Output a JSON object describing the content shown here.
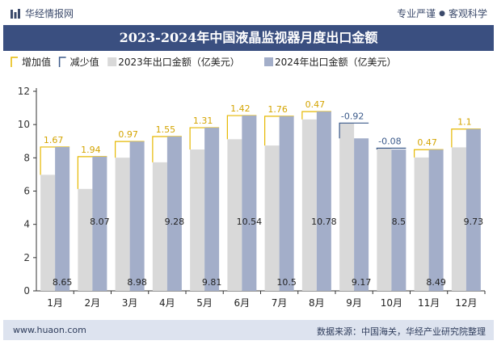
{
  "header": {
    "brand": "华经情报网",
    "tag_quality": "专业严谨",
    "tag_science": "客观科学"
  },
  "footer": {
    "url": "www.huaon.com",
    "source": "数据来源：中国海关，华经产业研究院整理"
  },
  "colors": {
    "title_bg": "#3a4f80",
    "bar_2023": "#d9d9d9",
    "bar_2024": "#a3aec9",
    "increase": "#e6b800",
    "decrease": "#3b5a8a",
    "footer_bg": "#dde3ef"
  },
  "chart_data": {
    "type": "bar",
    "title": "2023-2024年中国液晶监视器月度出口金额",
    "categories": [
      "1月",
      "2月",
      "3月",
      "4月",
      "5月",
      "6月",
      "7月",
      "8月",
      "9月",
      "10月",
      "11月",
      "12月"
    ],
    "series": [
      {
        "name": "2023年出口金额（亿美元）",
        "values": [
          6.98,
          6.13,
          8.01,
          7.73,
          8.5,
          9.12,
          8.74,
          10.31,
          10.09,
          8.58,
          8.02,
          8.63
        ]
      },
      {
        "name": "2024年出口金额（亿美元）",
        "values": [
          8.65,
          8.07,
          8.98,
          9.28,
          9.81,
          10.54,
          10.5,
          10.78,
          9.17,
          8.5,
          8.49,
          9.73
        ]
      }
    ],
    "change_values": [
      "1.67",
      "1.94",
      "0.97",
      "1.55",
      "1.31",
      "1.42",
      "1.76",
      "0.47",
      "-0.92",
      "-0.08",
      "0.47",
      "1.1"
    ],
    "value_labels_2024": [
      "8.65",
      "8.07",
      "8.98",
      "9.28",
      "9.81",
      "10.54",
      "10.5",
      "10.78",
      "9.17",
      "8.5",
      "8.49",
      "9.73"
    ],
    "legend": [
      {
        "name": "增加值",
        "kind": "increase"
      },
      {
        "name": "减少值",
        "kind": "decrease"
      },
      {
        "name": "2023年出口金额（亿美元）",
        "kind": "bar2023"
      },
      {
        "name": "2024年出口金额（亿美元）",
        "kind": "bar2024"
      }
    ],
    "legend_position": "top-left",
    "y_ticks": [
      "0",
      "2",
      "4",
      "6",
      "8",
      "10",
      "12"
    ],
    "ylim": [
      0,
      12
    ],
    "grid": false
  }
}
